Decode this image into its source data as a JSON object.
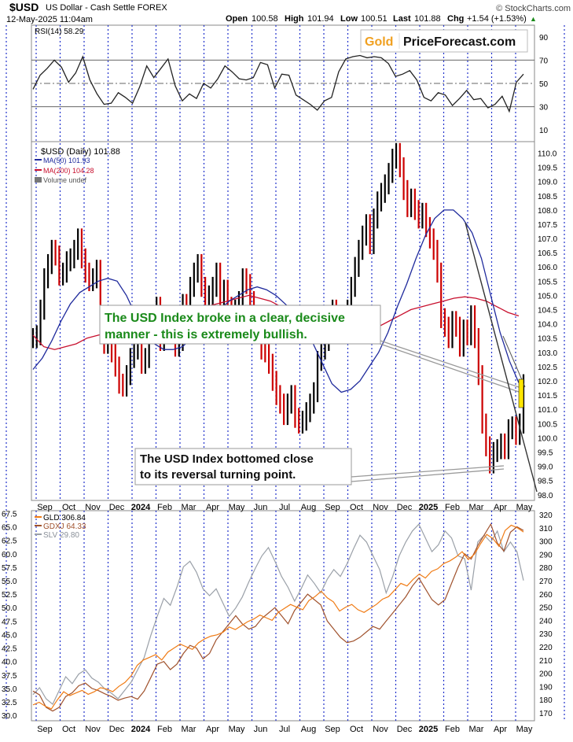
{
  "header": {
    "symbol": "$USD",
    "name": "US Dollar - Cash Settle FOREX",
    "datetime": "12-May-2025 11:04am",
    "open_label": "Open",
    "open": "100.58",
    "high_label": "High",
    "high": "101.94",
    "low_label": "Low",
    "low": "100.51",
    "last_label": "Last",
    "last": "101.88",
    "chg_label": "Chg",
    "chg": "+1.54 (+1.53%)",
    "up_arrow": "▲",
    "source": "© StockCharts.com"
  },
  "logo": {
    "part1": "Gold",
    "part2": "PriceForecast.com"
  },
  "legend": {
    "rsi": "RSI(14) 58.29",
    "usd": "$USD (Daily) 101.88",
    "ma50": "MA(50) 101.93",
    "ma200": "MA(200) 104.28",
    "volume": "Volume undef",
    "gld": "GLD 306.84",
    "gdxj": "GDXJ 64.33",
    "slv": "SLV 29.80"
  },
  "annotations": {
    "green": "The USD Index broke in a clear, decisive manner - this is extremely bullish.",
    "black": "The USD Index bottomed close to its reversal turning point."
  },
  "x_axis_labels": [
    "Sep",
    "Oct",
    "Nov",
    "Dec",
    "2024",
    "Feb",
    "Mar",
    "Apr",
    "May",
    "Jun",
    "Jul",
    "Aug",
    "Sep",
    "Oct",
    "Nov",
    "Dec",
    "2025",
    "Feb",
    "Mar",
    "Apr",
    "May"
  ],
  "x_axis_bold": [
    "2024",
    "2025"
  ],
  "colors": {
    "price_up": "#000000",
    "price_down": "#cc0000",
    "ma50": "#1f2a9c",
    "ma200": "#c8102e",
    "gld": "#f07b14",
    "gdxj": "#a0522d",
    "slv": "#9aa0a8",
    "annotation_green": "#1a8a1a",
    "highlight": "#ffe600",
    "grid_dotted": "#2233cc"
  },
  "chart_data": [
    {
      "type": "line",
      "title": "RSI(14) 58.29",
      "ylim": [
        0,
        100
      ],
      "yticks": [
        "90",
        "70",
        "50",
        "30",
        "10"
      ],
      "guide_levels": [
        70,
        50,
        30
      ],
      "series": [
        {
          "name": "RSI(14)",
          "values": [
            45,
            57,
            63,
            70,
            64,
            51,
            59,
            73,
            53,
            41,
            32,
            33,
            42,
            38,
            33,
            47,
            65,
            55,
            63,
            71,
            48,
            35,
            41,
            37,
            50,
            46,
            54,
            65,
            60,
            54,
            53,
            55,
            68,
            66,
            46,
            58,
            57,
            40,
            36,
            32,
            27,
            35,
            38,
            60,
            71,
            73,
            74,
            72,
            73,
            72,
            67,
            56,
            58,
            61,
            53,
            38,
            35,
            42,
            40,
            31,
            37,
            44,
            36,
            37,
            29,
            32,
            39,
            26,
            51,
            58
          ]
        }
      ]
    },
    {
      "type": "line",
      "title": "$USD (Daily) 101.88",
      "ylim": [
        97.8,
        110.4
      ],
      "yticks": [
        "110.0",
        "109.5",
        "109.0",
        "108.5",
        "108.0",
        "107.5",
        "107.0",
        "106.5",
        "106.0",
        "105.5",
        "105.0",
        "104.5",
        "104.0",
        "103.5",
        "103.0",
        "102.5",
        "102.0",
        "101.5",
        "101.0",
        "100.5",
        "100.0",
        "99.5",
        "99.0",
        "98.5",
        "98.0"
      ],
      "series": [
        {
          "name": "$USD",
          "values": [
            103.5,
            103.6,
            104.5,
            105.6,
            106.1,
            106.6,
            106.4,
            105.7,
            105.8,
            106.2,
            106.3,
            106.6,
            107.0,
            106.3,
            105.8,
            105.5,
            105.6,
            105.9,
            104.2,
            103.3,
            103.7,
            103.0,
            102.5,
            101.9,
            101.8,
            102.2,
            102.8,
            103.1,
            103.3,
            102.6,
            102.8,
            103.7,
            104.2,
            104.6,
            103.4,
            104.1,
            104.3,
            104.0,
            103.2,
            103.4,
            104.7,
            104.3,
            105.3,
            105.8,
            106.1,
            105.3,
            104.5,
            105.0,
            105.3,
            105.8,
            104.9,
            105.2,
            104.6,
            104.3,
            104.5,
            104.8,
            105.6,
            105.4,
            104.8,
            104.0,
            104.2,
            103.1,
            103.0,
            102.6,
            102.0,
            101.5,
            101.2,
            100.8,
            101.2,
            101.5,
            100.7,
            100.5,
            100.6,
            100.9,
            101.2,
            101.6,
            102.7,
            103.1,
            103.4,
            104.0,
            104.5,
            104.2,
            103.8,
            104.1,
            104.5,
            105.3,
            106.0,
            106.6,
            107.1,
            107.5,
            106.8,
            107.7,
            108.3,
            108.6,
            108.9,
            109.3,
            109.8,
            110.0,
            109.5,
            108.7,
            108.1,
            108.4,
            108.0,
            107.7,
            107.9,
            107.4,
            107.0,
            106.6,
            105.8,
            104.2,
            103.9,
            103.5,
            104.1,
            103.9,
            103.2,
            103.8,
            103.6,
            104.3,
            103.5,
            102.2,
            100.5,
            99.7,
            99.1,
            99.5,
            99.6,
            99.8,
            99.6,
            100.3,
            100.4,
            100.1,
            100.5,
            101.88
          ]
        },
        {
          "name": "MA(50)",
          "values": [
            102.4,
            102.8,
            103.4,
            104.1,
            104.7,
            105.1,
            105.3,
            105.5,
            105.6,
            105.5,
            105.0,
            104.3,
            103.7,
            103.3,
            103.1,
            103.1,
            103.2,
            103.5,
            103.8,
            104.1,
            104.5,
            104.8,
            105.0,
            105.2,
            105.3,
            105.2,
            105.0,
            104.7,
            104.4,
            104.0,
            103.3,
            102.6,
            101.9,
            101.6,
            101.7,
            102.0,
            102.5,
            103.0,
            103.7,
            104.6,
            105.4,
            106.3,
            107.1,
            107.7,
            108.0,
            108.0,
            107.7,
            107.2,
            106.3,
            105.0,
            103.7,
            102.7,
            101.93
          ]
        },
        {
          "name": "MA(200)",
          "values": [
            103.6,
            103.2,
            103.1,
            103.2,
            103.3,
            103.5,
            103.6,
            103.7,
            103.8,
            103.9,
            104.0,
            104.1,
            104.2,
            104.3,
            104.4,
            104.5,
            104.6,
            104.7,
            104.8,
            104.9,
            105.0,
            104.9,
            104.8,
            104.6,
            104.4,
            104.2,
            103.9,
            103.8,
            103.7,
            103.7,
            103.6,
            103.7,
            103.9,
            104.1,
            104.3,
            104.5,
            104.6,
            104.7,
            104.8,
            104.9,
            104.95,
            104.9,
            104.8,
            104.6,
            104.4,
            104.28
          ]
        }
      ]
    },
    {
      "type": "line",
      "title": "GLD 306.84 / GDXJ 64.33 / SLV 29.80",
      "left_ylim": [
        29,
        68
      ],
      "right_ylim": [
        164,
        323
      ],
      "left_yticks": [
        "67.5",
        "65.0",
        "62.5",
        "60.0",
        "57.5",
        "55.0",
        "52.5",
        "50.0",
        "47.5",
        "45.0",
        "42.5",
        "40.0",
        "37.5",
        "35.0",
        "32.5",
        "30.0"
      ],
      "right_yticks": [
        "320",
        "310",
        "300",
        "290",
        "280",
        "270",
        "260",
        "250",
        "240",
        "230",
        "220",
        "210",
        "200",
        "190",
        "180",
        "170"
      ],
      "series": [
        {
          "name": "GLD",
          "values": [
            176,
            178,
            175,
            173,
            180,
            186,
            183,
            185,
            187,
            184,
            186,
            189,
            188,
            186,
            190,
            193,
            198,
            206,
            210,
            212,
            214,
            210,
            216,
            219,
            222,
            220,
            218,
            223,
            226,
            228,
            229,
            231,
            235,
            233,
            236,
            239,
            241,
            244,
            242,
            240,
            246,
            249,
            252,
            250,
            248,
            255,
            258,
            262,
            257,
            254,
            247,
            250,
            252,
            248,
            246,
            249,
            252,
            256,
            258,
            263,
            268,
            266,
            271,
            275,
            272,
            277,
            279,
            283,
            285,
            288,
            292,
            286,
            290,
            298,
            305,
            302,
            296,
            308,
            312,
            310,
            306.84
          ]
        },
        {
          "name": "GDXJ",
          "values": [
            34.5,
            33.8,
            31.5,
            30.8,
            31.5,
            33.5,
            34.2,
            35.5,
            36.0,
            35.0,
            34.6,
            34.0,
            33.5,
            32.8,
            33.2,
            33.5,
            33.0,
            34.5,
            37.0,
            39.5,
            40.0,
            38.5,
            39.5,
            41.5,
            43.0,
            42.5,
            40.5,
            41.5,
            44.0,
            45.5,
            47.0,
            48.5,
            47.0,
            46.0,
            46.5,
            48.0,
            49.0,
            50.0,
            48.5,
            47.0,
            49.5,
            51.0,
            52.5,
            51.5,
            50.5,
            47.5,
            46.0,
            44.5,
            43.5,
            43.8,
            44.5,
            45.5,
            46.5,
            46.0,
            47.5,
            49.0,
            50.5,
            52.0,
            54.0,
            55.5,
            53.5,
            51.5,
            50.5,
            51.5,
            54.5,
            57.5,
            60.0,
            59.0,
            61.5,
            63.5,
            65.5,
            62.0,
            60.5,
            64.0,
            65.0,
            64.33
          ]
        },
        {
          "name": "SLV",
          "values": [
            21.5,
            22.0,
            21.2,
            20.8,
            21.8,
            22.8,
            22.3,
            23.0,
            23.3,
            22.7,
            22.4,
            21.9,
            21.6,
            21.2,
            21.8,
            22.4,
            23.3,
            24.2,
            25.8,
            27.2,
            28.5,
            28.0,
            29.3,
            30.8,
            31.2,
            30.4,
            29.2,
            28.7,
            29.2,
            28.2,
            27.2,
            27.8,
            28.6,
            29.7,
            30.7,
            31.6,
            32.2,
            31.2,
            30.1,
            29.3,
            28.3,
            29.2,
            30.2,
            29.6,
            28.9,
            29.9,
            30.6,
            30.1,
            31.0,
            32.1,
            33.1,
            32.6,
            31.6,
            30.6,
            28.9,
            30.1,
            31.6,
            32.6,
            33.4,
            33.9,
            32.9,
            31.9,
            32.4,
            33.4,
            32.9,
            31.6,
            31.4,
            29.1,
            32.6,
            33.1,
            32.6,
            33.4,
            31.9,
            32.6,
            31.9,
            29.8
          ]
        }
      ]
    }
  ]
}
